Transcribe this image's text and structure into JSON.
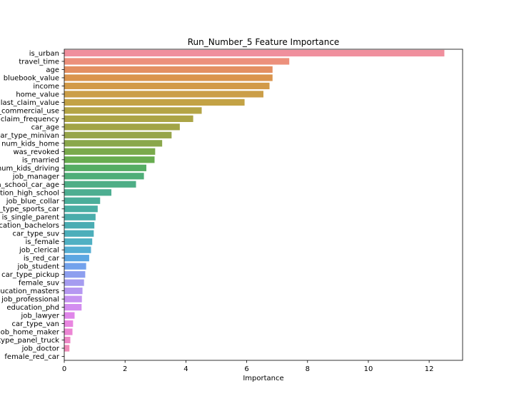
{
  "chart_data": {
    "type": "bar",
    "orientation": "horizontal",
    "title": "Run_Number_5 Feature Importance",
    "xlabel": "Importance",
    "ylabel": "",
    "xlim": [
      0,
      13.1
    ],
    "xticks": [
      0,
      2,
      4,
      6,
      8,
      10,
      12
    ],
    "grid": false,
    "categories": [
      "is_urban",
      "travel_time",
      "age",
      "bluebook_value",
      "income",
      "home_value",
      "last_claim_value",
      "is_commercial_use",
      "claim_frequency",
      "car_age",
      "car_type_minivan",
      "num_kids_home",
      "was_revoked",
      "is_married",
      "num_kids_driving",
      "job_manager",
      "high_school_car_age",
      "education_high_school",
      "job_blue_collar",
      "car_type_sports_car",
      "is_single_parent",
      "education_bachelors",
      "car_type_suv",
      "is_female",
      "job_clerical",
      "is_red_car",
      "job_student",
      "car_type_pickup",
      "female_suv",
      "education_masters",
      "job_professional",
      "education_phd",
      "job_lawyer",
      "car_type_van",
      "job_home_maker",
      "car_type_panel_truck",
      "job_doctor",
      "female_red_car"
    ],
    "values": [
      12.5,
      7.4,
      6.85,
      6.85,
      6.75,
      6.55,
      5.93,
      4.52,
      4.24,
      3.8,
      3.53,
      3.22,
      2.99,
      2.97,
      2.7,
      2.62,
      2.36,
      1.55,
      1.18,
      1.1,
      1.03,
      0.99,
      0.97,
      0.92,
      0.88,
      0.82,
      0.72,
      0.69,
      0.65,
      0.6,
      0.58,
      0.57,
      0.34,
      0.29,
      0.27,
      0.2,
      0.17,
      0.01
    ],
    "colors": [
      "#f08f9d",
      "#ec907c",
      "#e38f62",
      "#da944d",
      "#d29a48",
      "#cb9e48",
      "#c3a245",
      "#b4a446",
      "#aba446",
      "#a2a446",
      "#97a54a",
      "#8aa74b",
      "#7aaa4c",
      "#67ac4f",
      "#54ad63",
      "#4fae78",
      "#4eae86",
      "#4dae91",
      "#4bae9a",
      "#4aaea3",
      "#4aadab",
      "#4aadb3",
      "#4caeba",
      "#50b0c3",
      "#55aed3",
      "#5ca6e2",
      "#73a2ec",
      "#8d9fef",
      "#a59cf0",
      "#b598f1",
      "#c693f1",
      "#d38df0",
      "#e086ea",
      "#e986e0",
      "#ec85d4",
      "#ed87c6",
      "#ef8ab8",
      "#f18daa"
    ]
  }
}
